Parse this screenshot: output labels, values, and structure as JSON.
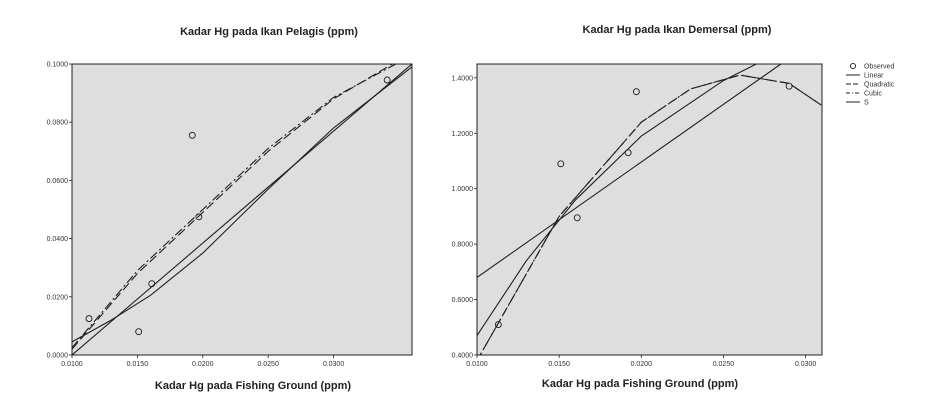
{
  "chart_data": [
    {
      "type": "scatter",
      "title": "Kadar Hg pada Ikan Pelagis (ppm)",
      "xlabel": "Kadar Hg pada Fishing Ground (ppm)",
      "ylabel": "",
      "xlim": [
        0.01,
        0.036
      ],
      "ylim": [
        0.0,
        0.1
      ],
      "x_ticks": [
        "0.0100",
        "0.0150",
        "0.0200",
        "0.0250",
        "0.0300"
      ],
      "x_tick_values": [
        0.01,
        0.015,
        0.02,
        0.025,
        0.03
      ],
      "y_ticks": [
        "0.0000",
        "0.0200",
        "0.0400",
        "0.0600",
        "0.0800",
        "0.1000"
      ],
      "y_tick_values": [
        0.0,
        0.02,
        0.04,
        0.06,
        0.08,
        0.1
      ],
      "observed": {
        "x": [
          0.0113,
          0.0151,
          0.0161,
          0.0192,
          0.0197,
          0.0341
        ],
        "y": [
          0.0125,
          0.008,
          0.0245,
          0.0755,
          0.0475,
          0.0945
        ]
      },
      "fits": [
        {
          "kind": "linear",
          "style": "solid",
          "x": [
            0.01,
            0.036
          ],
          "y": [
            0.0,
            0.1
          ]
        },
        {
          "kind": "quadratic",
          "style": "dashed",
          "x": [
            0.01,
            0.015,
            0.02,
            0.025,
            0.03,
            0.036
          ],
          "y": [
            0.002,
            0.028,
            0.049,
            0.07,
            0.088,
            0.104
          ]
        },
        {
          "kind": "cubic",
          "style": "dashdot",
          "x": [
            0.01,
            0.015,
            0.02,
            0.025,
            0.03,
            0.036
          ],
          "y": [
            0.0025,
            0.029,
            0.05,
            0.071,
            0.0885,
            0.103
          ]
        },
        {
          "kind": "s",
          "style": "solid",
          "x": [
            0.01,
            0.013,
            0.016,
            0.02,
            0.025,
            0.03,
            0.036
          ],
          "y": [
            0.0045,
            0.012,
            0.0205,
            0.035,
            0.057,
            0.078,
            0.099
          ]
        }
      ],
      "grid": false
    },
    {
      "type": "scatter",
      "title": "Kadar Hg pada Ikan Demersal (ppm)",
      "xlabel": "Kadar Hg pada Fishing Ground (ppm)",
      "ylabel": "",
      "xlim": [
        0.01,
        0.031
      ],
      "ylim": [
        0.4,
        1.45
      ],
      "x_ticks": [
        "0.0100",
        "0.0150",
        "0.0200",
        "0.0250",
        "0.0300"
      ],
      "x_tick_values": [
        0.01,
        0.015,
        0.02,
        0.025,
        0.03
      ],
      "y_ticks": [
        "0.4000",
        "0.6000",
        "0.8000",
        "1.0000",
        "1.2000",
        "1.4000"
      ],
      "y_tick_values": [
        0.4,
        0.6,
        0.8,
        1.0,
        1.2,
        1.4
      ],
      "observed": {
        "x": [
          0.0113,
          0.0151,
          0.0161,
          0.0192,
          0.0197,
          0.029
        ],
        "y": [
          0.51,
          1.09,
          0.895,
          1.13,
          1.35,
          1.37
        ]
      },
      "fits": [
        {
          "kind": "linear",
          "style": "solid",
          "x": [
            0.01,
            0.0285
          ],
          "y": [
            0.68,
            1.45
          ]
        },
        {
          "kind": "quadratic",
          "style": "dashed",
          "x": [
            0.01,
            0.015,
            0.02,
            0.023,
            0.026,
            0.029,
            0.031
          ],
          "y": [
            0.38,
            0.9,
            1.24,
            1.36,
            1.41,
            1.38,
            1.3
          ]
        },
        {
          "kind": "cubic",
          "style": "dashdot",
          "x": [
            0.01,
            0.015,
            0.02,
            0.023,
            0.026,
            0.029,
            0.031
          ],
          "y": [
            0.38,
            0.9,
            1.24,
            1.36,
            1.41,
            1.38,
            1.3
          ]
        },
        {
          "kind": "s",
          "style": "solid",
          "x": [
            0.01,
            0.013,
            0.016,
            0.02,
            0.025,
            0.027
          ],
          "y": [
            0.47,
            0.74,
            0.96,
            1.19,
            1.39,
            1.45
          ]
        }
      ],
      "grid": false,
      "legend": {
        "placement": "right",
        "items": [
          {
            "label": "Observed",
            "kind": "observed"
          },
          {
            "label": "Linear",
            "kind": "linear"
          },
          {
            "label": "Quadratic",
            "kind": "quadratic"
          },
          {
            "label": "Cubic",
            "kind": "cubic"
          },
          {
            "label": "S",
            "kind": "s"
          }
        ]
      }
    }
  ],
  "colors": {
    "plot_background": "#dedede",
    "line": "#1f1f1f",
    "text": "#222222"
  }
}
